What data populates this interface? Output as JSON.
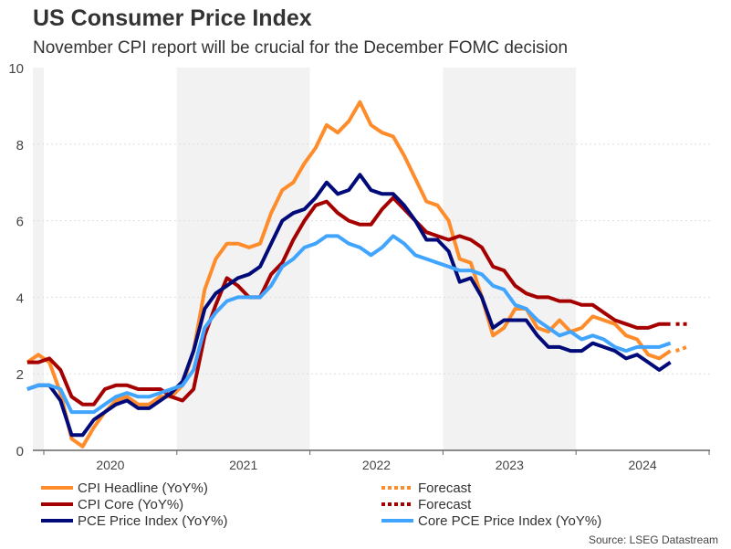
{
  "chart_data": {
    "type": "line",
    "title": "US Consumer Price Index",
    "subtitle": "November CPI report will be crucial for the December FOMC decision",
    "source": "Source: LSEG Datastream",
    "ylim": [
      0,
      10
    ],
    "yticks": [
      0,
      2,
      4,
      6,
      8,
      10
    ],
    "xticks": [
      "2020",
      "2021",
      "2022",
      "2023",
      "2024"
    ],
    "shaded_years": [
      "2021",
      "2023"
    ],
    "grid": "horizontal dotted",
    "legend_placement": "bottom",
    "x": [
      "2019-12",
      "2020-01",
      "2020-02",
      "2020-03",
      "2020-04",
      "2020-05",
      "2020-06",
      "2020-07",
      "2020-08",
      "2020-09",
      "2020-10",
      "2020-11",
      "2020-12",
      "2021-01",
      "2021-02",
      "2021-03",
      "2021-04",
      "2021-05",
      "2021-06",
      "2021-07",
      "2021-08",
      "2021-09",
      "2021-10",
      "2021-11",
      "2021-12",
      "2022-01",
      "2022-02",
      "2022-03",
      "2022-04",
      "2022-05",
      "2022-06",
      "2022-07",
      "2022-08",
      "2022-09",
      "2022-10",
      "2022-11",
      "2022-12",
      "2023-01",
      "2023-02",
      "2023-03",
      "2023-04",
      "2023-05",
      "2023-06",
      "2023-07",
      "2023-08",
      "2023-09",
      "2023-10",
      "2023-11",
      "2023-12",
      "2024-01",
      "2024-02",
      "2024-03",
      "2024-04",
      "2024-05",
      "2024-06",
      "2024-07",
      "2024-08",
      "2024-09",
      "2024-10"
    ],
    "series": [
      {
        "name": "CPI Headline (YoY%)",
        "color": "#ff8c2a",
        "values": [
          2.3,
          2.5,
          2.3,
          1.5,
          0.3,
          0.1,
          0.6,
          1.0,
          1.3,
          1.4,
          1.2,
          1.2,
          1.4,
          1.4,
          1.7,
          2.6,
          4.2,
          5.0,
          5.4,
          5.4,
          5.3,
          5.4,
          6.2,
          6.8,
          7.0,
          7.5,
          7.9,
          8.5,
          8.3,
          8.6,
          9.1,
          8.5,
          8.3,
          8.2,
          7.7,
          7.1,
          6.5,
          6.4,
          6.0,
          5.0,
          4.9,
          4.0,
          3.0,
          3.2,
          3.7,
          3.7,
          3.2,
          3.1,
          3.4,
          3.1,
          3.2,
          3.5,
          3.4,
          3.3,
          3.0,
          2.9,
          2.5,
          2.4,
          2.6
        ],
        "forecast": {
          "name": "Forecast",
          "x": [
            "2024-10",
            "2024-11"
          ],
          "values": [
            2.6,
            2.7
          ]
        }
      },
      {
        "name": "CPI Core (YoY%)",
        "color": "#a50000",
        "values": [
          2.3,
          2.3,
          2.4,
          2.1,
          1.4,
          1.2,
          1.2,
          1.6,
          1.7,
          1.7,
          1.6,
          1.6,
          1.6,
          1.4,
          1.3,
          1.6,
          3.0,
          3.8,
          4.5,
          4.3,
          4.0,
          4.0,
          4.6,
          4.9,
          5.5,
          6.0,
          6.4,
          6.5,
          6.2,
          6.0,
          5.9,
          5.9,
          6.3,
          6.6,
          6.3,
          6.0,
          5.7,
          5.6,
          5.5,
          5.6,
          5.5,
          5.3,
          4.8,
          4.7,
          4.3,
          4.1,
          4.0,
          4.0,
          3.9,
          3.9,
          3.8,
          3.8,
          3.6,
          3.4,
          3.3,
          3.2,
          3.2,
          3.3,
          3.3
        ],
        "forecast": {
          "name": "Forecast",
          "x": [
            "2024-10",
            "2024-11"
          ],
          "values": [
            3.3,
            3.3
          ]
        }
      },
      {
        "name": "PCE Price Index (YoY%)",
        "color": "#000a78",
        "values": [
          1.6,
          1.7,
          1.7,
          1.3,
          0.4,
          0.4,
          0.8,
          1.0,
          1.2,
          1.3,
          1.1,
          1.1,
          1.3,
          1.5,
          1.8,
          2.6,
          3.7,
          4.1,
          4.3,
          4.5,
          4.6,
          4.8,
          5.4,
          6.0,
          6.2,
          6.3,
          6.6,
          7.0,
          6.7,
          6.8,
          7.2,
          6.8,
          6.7,
          6.7,
          6.4,
          6.0,
          5.5,
          5.5,
          5.2,
          4.4,
          4.5,
          4.0,
          3.2,
          3.4,
          3.4,
          3.4,
          3.0,
          2.7,
          2.7,
          2.6,
          2.6,
          2.8,
          2.7,
          2.6,
          2.4,
          2.5,
          2.3,
          2.1,
          2.3
        ]
      },
      {
        "name": "Core PCE Price Index (YoY%)",
        "color": "#41a5ff",
        "values": [
          1.6,
          1.7,
          1.7,
          1.6,
          1.0,
          1.0,
          1.0,
          1.2,
          1.4,
          1.5,
          1.4,
          1.4,
          1.5,
          1.6,
          1.7,
          2.1,
          3.2,
          3.6,
          3.9,
          4.0,
          4.0,
          4.0,
          4.3,
          4.8,
          5.0,
          5.3,
          5.4,
          5.6,
          5.6,
          5.4,
          5.3,
          5.1,
          5.3,
          5.6,
          5.4,
          5.1,
          5.0,
          4.9,
          4.8,
          4.7,
          4.7,
          4.6,
          4.3,
          4.2,
          3.8,
          3.7,
          3.4,
          3.2,
          3.0,
          3.1,
          2.9,
          3.0,
          2.9,
          2.7,
          2.6,
          2.7,
          2.7,
          2.7,
          2.8
        ]
      }
    ]
  }
}
